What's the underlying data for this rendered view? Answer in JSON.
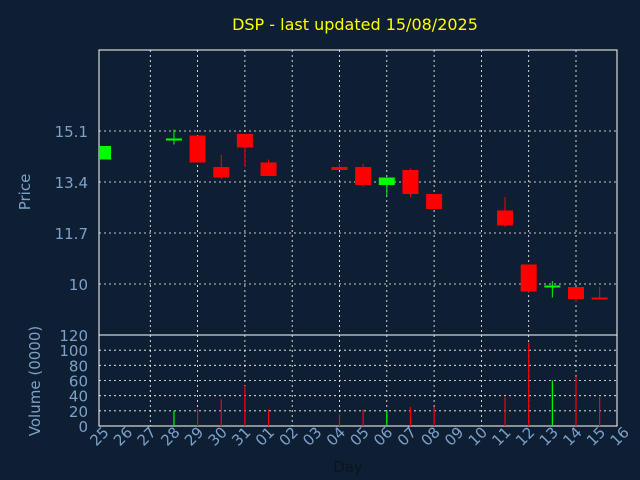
{
  "title": "DSP - last updated 15/08/2025",
  "colors": {
    "background": "#0f1f33",
    "title": "#ffff00",
    "axis_text": "#7ba1c9",
    "up": "#00ff00",
    "down": "#ff0000",
    "grid": "#ffffff",
    "frame": "#ffffff"
  },
  "chart_data": {
    "type": "candlestick",
    "title": "DSP - last updated 15/08/2025",
    "xlabel": "Day",
    "price": {
      "ylabel": "Price",
      "ylim": [
        8.3,
        17.8
      ],
      "yticks": [
        10,
        11.7,
        13.4,
        15.1
      ],
      "ytick_labels": [
        "10",
        "11.7",
        "13.4",
        "15.1"
      ]
    },
    "volume": {
      "ylabel": "Volume (0000)",
      "ylim": [
        0,
        120
      ],
      "yticks": [
        0,
        20,
        40,
        60,
        80,
        100,
        120
      ],
      "ytick_labels": [
        "0",
        "20",
        "40",
        "60",
        "80",
        "100",
        "120"
      ]
    },
    "days": [
      "25",
      "26",
      "27",
      "28",
      "29",
      "30",
      "31",
      "01",
      "02",
      "03",
      "04",
      "05",
      "06",
      "07",
      "08",
      "09",
      "10",
      "11",
      "12",
      "13",
      "14",
      "15",
      "16"
    ],
    "candles": [
      {
        "day": "25",
        "open": 14.15,
        "high": 14.6,
        "low": 14.15,
        "close": 14.6
      },
      {
        "day": "28",
        "open": 14.85,
        "high": 15.15,
        "low": 14.65,
        "close": 14.85
      },
      {
        "day": "29",
        "open": 14.95,
        "high": 14.95,
        "low": 14.05,
        "close": 14.05
      },
      {
        "day": "30",
        "open": 13.9,
        "high": 14.3,
        "low": 13.5,
        "close": 13.55
      },
      {
        "day": "31",
        "open": 15.0,
        "high": 15.0,
        "low": 13.9,
        "close": 14.55
      },
      {
        "day": "01",
        "open": 14.05,
        "high": 14.15,
        "low": 13.6,
        "close": 13.6
      },
      {
        "day": "04",
        "open": 13.9,
        "high": 14.0,
        "low": 13.8,
        "close": 13.8
      },
      {
        "day": "05",
        "open": 13.9,
        "high": 14.0,
        "low": 13.25,
        "close": 13.3
      },
      {
        "day": "06",
        "open": 13.3,
        "high": 13.55,
        "low": 12.95,
        "close": 13.55
      },
      {
        "day": "07",
        "open": 13.8,
        "high": 13.85,
        "low": 12.9,
        "close": 13.0
      },
      {
        "day": "08",
        "open": 13.0,
        "high": 13.0,
        "low": 12.5,
        "close": 12.5
      },
      {
        "day": "11",
        "open": 12.45,
        "high": 12.9,
        "low": 11.9,
        "close": 11.95
      },
      {
        "day": "12",
        "open": 10.65,
        "high": 10.65,
        "low": 9.7,
        "close": 9.75
      },
      {
        "day": "13",
        "open": 9.9,
        "high": 10.1,
        "low": 9.55,
        "close": 9.95
      },
      {
        "day": "14",
        "open": 9.9,
        "high": 9.9,
        "low": 9.4,
        "close": 9.5
      },
      {
        "day": "15",
        "open": 9.55,
        "high": 9.9,
        "low": 9.5,
        "close": 9.5
      }
    ],
    "volumes": [
      {
        "day": "25",
        "value": 0,
        "up": true
      },
      {
        "day": "28",
        "value": 20,
        "up": true
      },
      {
        "day": "29",
        "value": 22,
        "up": false
      },
      {
        "day": "30",
        "value": 35,
        "up": false
      },
      {
        "day": "31",
        "value": 53,
        "up": false
      },
      {
        "day": "01",
        "value": 22,
        "up": false
      },
      {
        "day": "04",
        "value": 15,
        "up": false
      },
      {
        "day": "05",
        "value": 22,
        "up": false
      },
      {
        "day": "06",
        "value": 20,
        "up": true
      },
      {
        "day": "07",
        "value": 25,
        "up": false
      },
      {
        "day": "08",
        "value": 25,
        "up": false
      },
      {
        "day": "11",
        "value": 38,
        "up": false
      },
      {
        "day": "12",
        "value": 110,
        "up": false
      },
      {
        "day": "13",
        "value": 60,
        "up": true
      },
      {
        "day": "14",
        "value": 65,
        "up": false
      },
      {
        "day": "15",
        "value": 38,
        "up": false
      }
    ]
  }
}
